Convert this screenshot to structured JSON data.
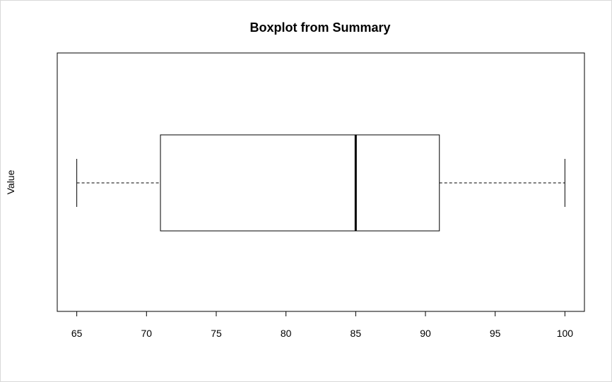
{
  "chart_data": {
    "type": "boxplot",
    "orientation": "horizontal",
    "title": "Boxplot from Summary",
    "xlabel": "",
    "ylabel": "Value",
    "xlim": [
      63.6,
      101.4
    ],
    "xticks": [
      65,
      70,
      75,
      80,
      85,
      90,
      95,
      100
    ],
    "grid": false,
    "stats": {
      "min": 65,
      "q1": 71,
      "median": 85,
      "q3": 91,
      "max": 100
    }
  },
  "colors": {
    "box_stroke": "#000000",
    "background": "#ffffff",
    "frame": "#d9d9d9"
  }
}
